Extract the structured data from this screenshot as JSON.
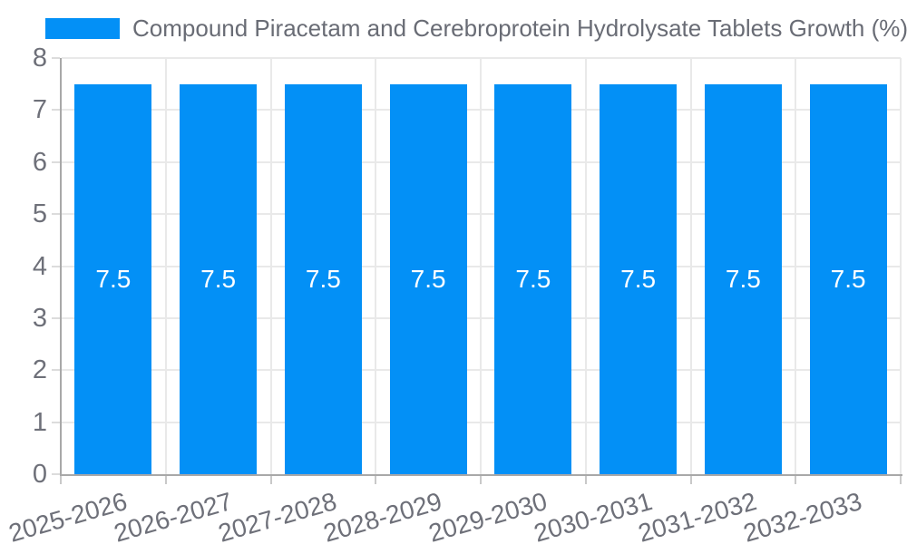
{
  "chart_data": {
    "type": "bar",
    "title": "Compound Piracetam and Cerebroprotein Hydrolysate Tablets Growth (%)",
    "legend": {
      "label": "Compound Piracetam and Cerebroprotein Hydrolysate Tablets Growth (%)",
      "position": "top-left"
    },
    "categories": [
      "2025-2026",
      "2026-2027",
      "2027-2028",
      "2028-2029",
      "2029-2030",
      "2030-2031",
      "2031-2032",
      "2032-2033"
    ],
    "values": [
      7.5,
      7.5,
      7.5,
      7.5,
      7.5,
      7.5,
      7.5,
      7.5
    ],
    "bar_labels": [
      "7.5",
      "7.5",
      "7.5",
      "7.5",
      "7.5",
      "7.5",
      "7.5",
      "7.5"
    ],
    "xlabel": "",
    "ylabel": "",
    "ylim": [
      0,
      8
    ],
    "yticks": [
      0,
      1,
      2,
      3,
      4,
      5,
      6,
      7,
      8
    ],
    "grid": true,
    "x_label_rotation_deg": -16,
    "colors": {
      "series": "#0390F6",
      "bar_label": "#ffffff",
      "axis_text": "#6E7079",
      "axis_line": "#a8a8a8",
      "gridline": "#e9e9e9"
    }
  }
}
